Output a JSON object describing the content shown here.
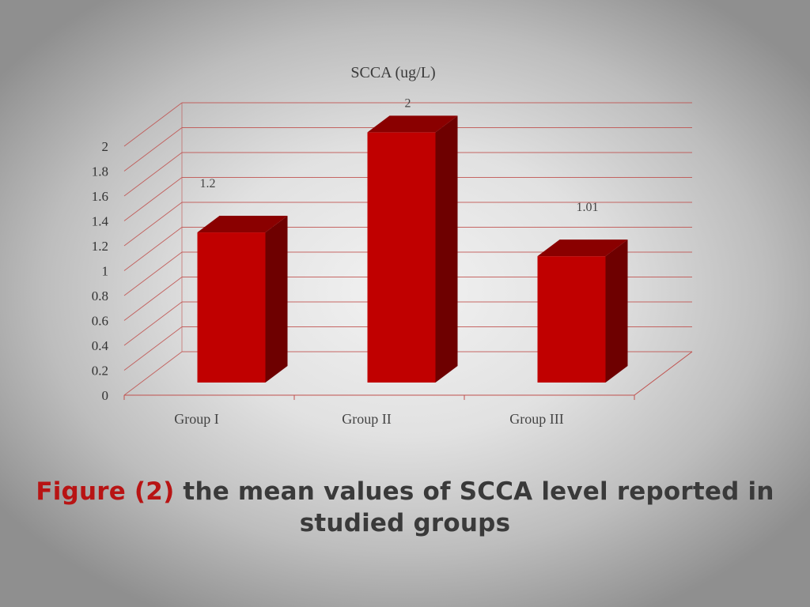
{
  "chart_data": {
    "type": "bar",
    "title": "SCCA (ug/L)",
    "categories": [
      "Group I",
      "Group II",
      "Group III"
    ],
    "values": [
      1.2,
      2,
      1.01
    ],
    "data_labels": [
      "1.2",
      "2",
      "1.01"
    ],
    "ylim": [
      0,
      2
    ],
    "yticks": [
      "0",
      "0.2",
      "0.4",
      "0.6",
      "0.8",
      "1",
      "1.2",
      "1.4",
      "1.6",
      "1.8",
      "2"
    ],
    "grid": true,
    "style": "3d",
    "bar_color": "#c00000",
    "gridline_color": "#c0504d"
  },
  "caption": {
    "figure_ref": "Figure (2)",
    "text": " the mean values of SCCA level reported in studied groups"
  }
}
